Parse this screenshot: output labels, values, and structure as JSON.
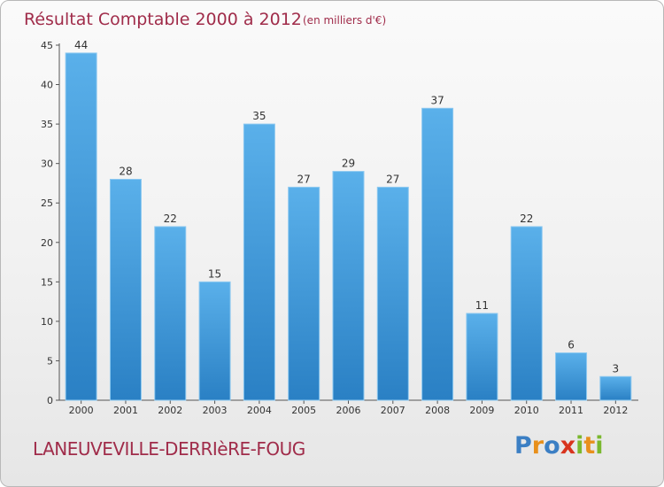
{
  "chart_data": {
    "type": "bar",
    "title": "Résultat Comptable 2000 à 2012",
    "subtitle": "(en milliers d'€)",
    "xlabel": "",
    "ylabel": "",
    "categories": [
      "2000",
      "2001",
      "2002",
      "2003",
      "2004",
      "2005",
      "2006",
      "2007",
      "2008",
      "2009",
      "2010",
      "2011",
      "2012"
    ],
    "values": [
      44,
      28,
      22,
      15,
      35,
      27,
      29,
      27,
      37,
      11,
      22,
      6,
      3
    ],
    "ylim": [
      0,
      45
    ],
    "yticks": [
      0,
      5,
      10,
      15,
      20,
      25,
      30,
      35,
      40,
      45
    ],
    "grid": false,
    "legend": "none"
  },
  "footer": {
    "commune": "LANEUVEVILLE-DERRIèRE-FOUG",
    "logo_letters": [
      "P",
      "r",
      "o",
      "x",
      "i",
      "t",
      "i"
    ]
  },
  "colors": {
    "bar_light": "#5ab0ea",
    "bar_dark": "#2a80c4",
    "title": "#a02c4a",
    "logo": [
      "#3b7fc4",
      "#e8901c",
      "#3b7fc4",
      "#d8341e",
      "#7ab82e",
      "#e8901c",
      "#7ab82e"
    ]
  }
}
